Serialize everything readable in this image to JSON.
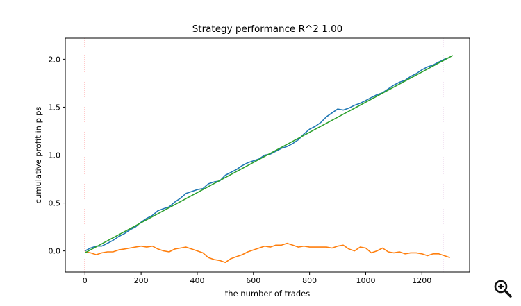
{
  "chart_data": {
    "type": "line",
    "title": "Strategy performance R^2 1.00",
    "xlabel": "the number of trades",
    "ylabel": "cumulative profit in pips",
    "xlim": [
      -70,
      1370
    ],
    "ylim": [
      -0.22,
      2.22
    ],
    "xticks": [
      0,
      200,
      400,
      600,
      800,
      1000,
      1200
    ],
    "yticks": [
      0.0,
      0.5,
      1.0,
      1.5,
      2.0
    ],
    "xtick_labels": [
      "0",
      "200",
      "400",
      "600",
      "800",
      "1000",
      "1200"
    ],
    "ytick_labels": [
      "0.0",
      "0.5",
      "1.0",
      "1.5",
      "2.0"
    ],
    "grid": false,
    "series": [
      {
        "color": "#1f77b4",
        "role": "equity",
        "x": [
          0,
          20,
          40,
          60,
          80,
          100,
          120,
          140,
          160,
          180,
          200,
          220,
          240,
          260,
          280,
          300,
          320,
          340,
          360,
          380,
          400,
          420,
          440,
          460,
          480,
          500,
          520,
          540,
          560,
          580,
          600,
          620,
          640,
          660,
          680,
          700,
          720,
          740,
          760,
          780,
          800,
          820,
          840,
          860,
          880,
          900,
          920,
          940,
          960,
          980,
          1000,
          1020,
          1040,
          1060,
          1080,
          1100,
          1120,
          1140,
          1160,
          1180,
          1200,
          1220,
          1240,
          1260,
          1280,
          1300
        ],
        "y": [
          0.0,
          0.03,
          0.05,
          0.05,
          0.08,
          0.11,
          0.15,
          0.18,
          0.22,
          0.25,
          0.3,
          0.34,
          0.37,
          0.42,
          0.44,
          0.46,
          0.51,
          0.55,
          0.6,
          0.62,
          0.64,
          0.65,
          0.7,
          0.72,
          0.73,
          0.79,
          0.82,
          0.85,
          0.89,
          0.92,
          0.94,
          0.96,
          1.0,
          1.01,
          1.04,
          1.07,
          1.09,
          1.12,
          1.16,
          1.22,
          1.27,
          1.3,
          1.34,
          1.4,
          1.44,
          1.48,
          1.47,
          1.49,
          1.52,
          1.54,
          1.57,
          1.6,
          1.63,
          1.65,
          1.69,
          1.73,
          1.76,
          1.78,
          1.82,
          1.85,
          1.89,
          1.92,
          1.94,
          1.97,
          2.0,
          2.02
        ]
      },
      {
        "color": "#ff7f0e",
        "role": "deviation",
        "x": [
          0,
          20,
          40,
          60,
          80,
          100,
          120,
          140,
          160,
          180,
          200,
          220,
          240,
          260,
          280,
          300,
          320,
          340,
          360,
          380,
          400,
          420,
          440,
          460,
          480,
          500,
          520,
          540,
          560,
          580,
          600,
          620,
          640,
          660,
          680,
          700,
          720,
          740,
          760,
          780,
          800,
          820,
          840,
          860,
          880,
          900,
          920,
          940,
          960,
          980,
          1000,
          1020,
          1040,
          1060,
          1080,
          1100,
          1120,
          1140,
          1160,
          1180,
          1200,
          1220,
          1240,
          1260,
          1280,
          1300
        ],
        "y": [
          -0.01,
          -0.02,
          -0.04,
          -0.02,
          -0.01,
          -0.01,
          0.01,
          0.02,
          0.03,
          0.04,
          0.05,
          0.04,
          0.05,
          0.02,
          0.0,
          -0.01,
          0.02,
          0.03,
          0.04,
          0.02,
          0.0,
          -0.02,
          -0.07,
          -0.09,
          -0.1,
          -0.12,
          -0.08,
          -0.06,
          -0.04,
          -0.01,
          0.01,
          0.03,
          0.05,
          0.04,
          0.06,
          0.06,
          0.08,
          0.06,
          0.04,
          0.05,
          0.04,
          0.04,
          0.04,
          0.04,
          0.03,
          0.05,
          0.06,
          0.02,
          0.0,
          0.04,
          0.03,
          -0.02,
          0.0,
          0.03,
          -0.01,
          -0.02,
          -0.01,
          -0.03,
          -0.02,
          -0.02,
          -0.03,
          -0.05,
          -0.03,
          -0.03,
          -0.05,
          -0.07
        ]
      },
      {
        "color": "#2ca02c",
        "role": "trend",
        "x": [
          0,
          1310
        ],
        "y": [
          -0.02,
          2.04
        ]
      }
    ],
    "vlines": [
      {
        "x": 0,
        "color": "#ff0000",
        "style": "dotted"
      },
      {
        "x": 1275,
        "color": "#800080",
        "style": "dotted"
      }
    ]
  },
  "toolbar": {
    "zoom_icon": "zoom-in-icon"
  }
}
